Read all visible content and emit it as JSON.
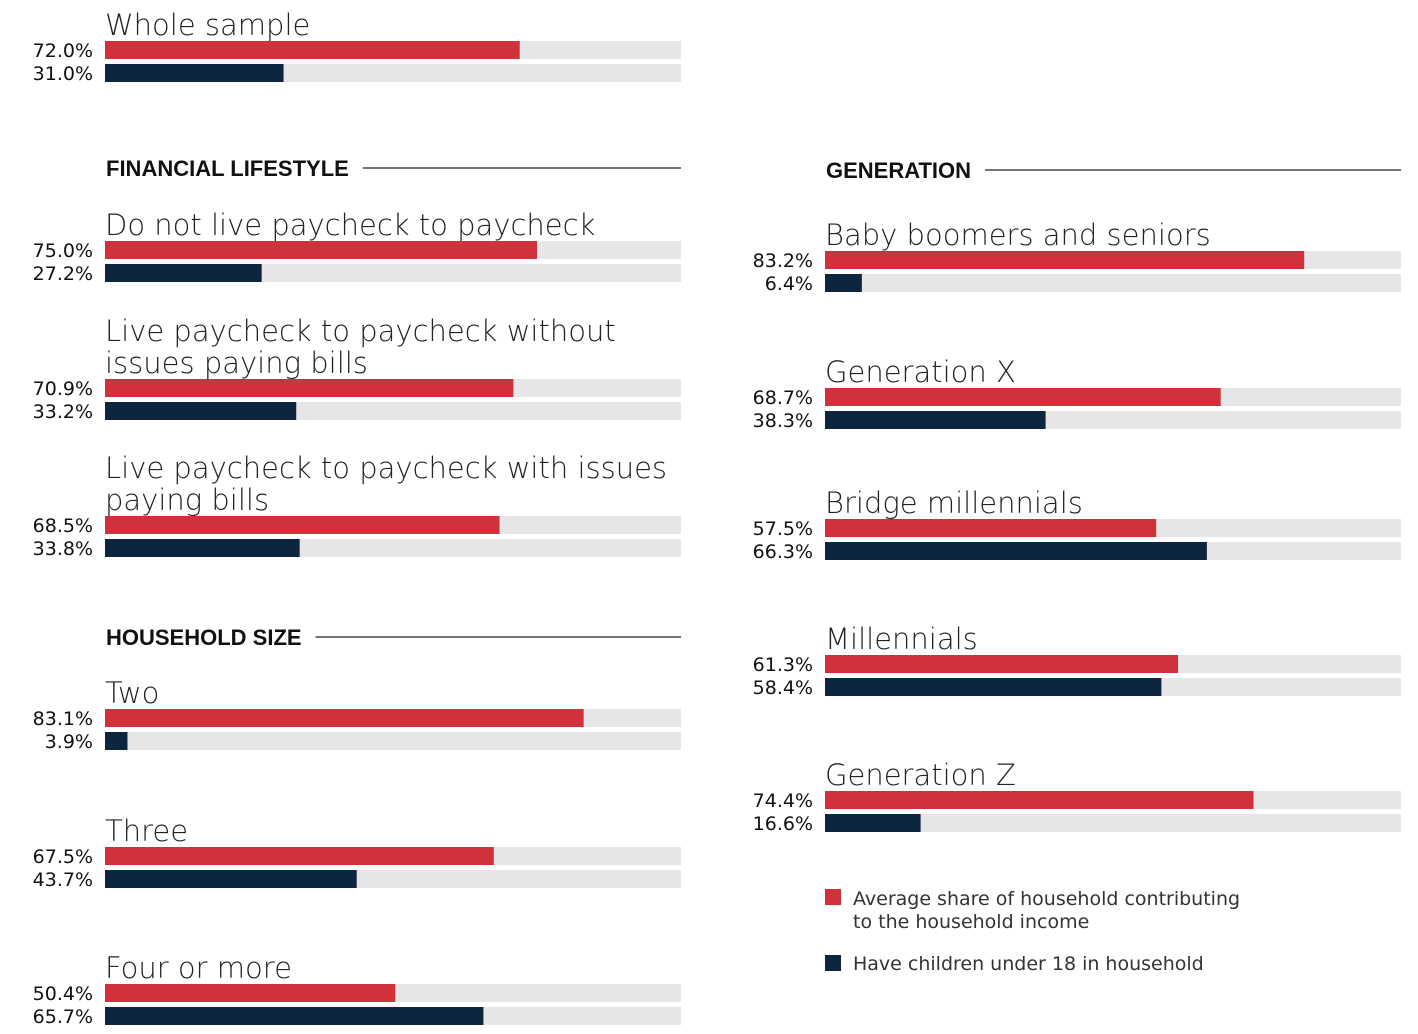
{
  "chart_data": {
    "type": "bar",
    "orientation": "horizontal",
    "xlim": [
      0,
      100
    ],
    "colors": {
      "share": "#d0323b",
      "children": "#0e2540",
      "track": "#e6e6e8"
    },
    "series": [
      {
        "key": "share",
        "name": "Average share of household contributing to the household income"
      },
      {
        "key": "children",
        "name": "Have children under 18 in household"
      }
    ],
    "overall": {
      "label": "Whole sample",
      "share": 72.0,
      "share_label": "72.0%",
      "children": 31.0,
      "children_label": "31.0%"
    },
    "sections": [
      {
        "title": "FINANCIAL LIFESTYLE",
        "groups": [
          {
            "label_lines": [
              "Do not live paycheck to paycheck"
            ],
            "share": 75.0,
            "share_label": "75.0%",
            "children": 27.2,
            "children_label": "27.2%"
          },
          {
            "label_lines": [
              "Live paycheck to paycheck without",
              "issues paying bills"
            ],
            "share": 70.9,
            "share_label": "70.9%",
            "children": 33.2,
            "children_label": "33.2%"
          },
          {
            "label_lines": [
              "Live paycheck to paycheck with issues",
              "paying bills"
            ],
            "share": 68.5,
            "share_label": "68.5%",
            "children": 33.8,
            "children_label": "33.8%"
          }
        ]
      },
      {
        "title": "HOUSEHOLD SIZE",
        "groups": [
          {
            "label_lines": [
              "Two"
            ],
            "share": 83.1,
            "share_label": "83.1%",
            "children": 3.9,
            "children_label": "3.9%"
          },
          {
            "label_lines": [
              "Three"
            ],
            "share": 67.5,
            "share_label": "67.5%",
            "children": 43.7,
            "children_label": "43.7%"
          },
          {
            "label_lines": [
              "Four or more"
            ],
            "share": 50.4,
            "share_label": "50.4%",
            "children": 65.7,
            "children_label": "65.7%"
          }
        ]
      },
      {
        "title": "GENERATION",
        "groups": [
          {
            "label_lines": [
              "Baby boomers and seniors"
            ],
            "share": 83.2,
            "share_label": "83.2%",
            "children": 6.4,
            "children_label": "6.4%"
          },
          {
            "label_lines": [
              "Generation X"
            ],
            "share": 68.7,
            "share_label": "68.7%",
            "children": 38.3,
            "children_label": "38.3%"
          },
          {
            "label_lines": [
              "Bridge millennials"
            ],
            "share": 57.5,
            "share_label": "57.5%",
            "children": 66.3,
            "children_label": "66.3%"
          },
          {
            "label_lines": [
              "Millennials"
            ],
            "share": 61.3,
            "share_label": "61.3%",
            "children": 58.4,
            "children_label": "58.4%"
          },
          {
            "label_lines": [
              "Generation Z"
            ],
            "share": 74.4,
            "share_label": "74.4%",
            "children": 16.6,
            "children_label": "16.6%"
          }
        ]
      }
    ],
    "legend": {
      "share_lines": [
        "Average share of household contributing",
        "to the household income"
      ],
      "children_lines": [
        "Have children under 18 in household"
      ]
    }
  }
}
